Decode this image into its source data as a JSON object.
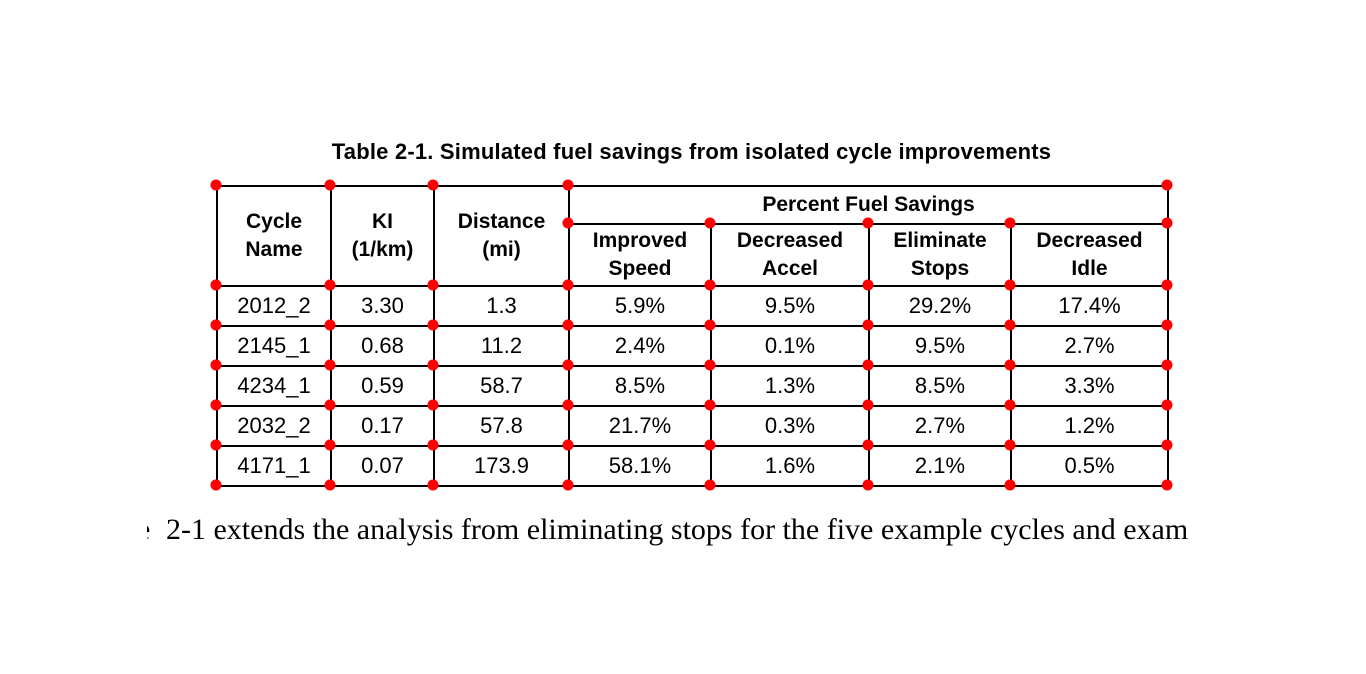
{
  "colors": {
    "background": "#ffffff",
    "border": "#000000",
    "text": "#000000",
    "marker": "#ff0000"
  },
  "caption": "Table 2-1. Simulated fuel savings from isolated cycle improvements",
  "table": {
    "columns": {
      "cycle_name": "Cycle\nName",
      "ki": "KI\n(1/km)",
      "distance": "Distance\n(mi)",
      "group_header": "Percent Fuel Savings",
      "improved_speed": "Improved\nSpeed",
      "decreased_accel": "Decreased\nAccel",
      "eliminate_stops": "Eliminate\nStops",
      "decreased_idle": "Decreased\nIdle"
    },
    "rows": [
      [
        "2012_2",
        "3.30",
        "1.3",
        "5.9%",
        "9.5%",
        "29.2%",
        "17.4%"
      ],
      [
        "2145_1",
        "0.68",
        "11.2",
        "2.4%",
        "0.1%",
        "9.5%",
        "2.7%"
      ],
      [
        "4234_1",
        "0.59",
        "58.7",
        "8.5%",
        "1.3%",
        "8.5%",
        "3.3%"
      ],
      [
        "2032_2",
        "0.17",
        "57.8",
        "21.7%",
        "0.3%",
        "2.7%",
        "1.2%"
      ],
      [
        "4171_1",
        "0.07",
        "173.9",
        "58.1%",
        "1.6%",
        "2.1%",
        "0.5%"
      ]
    ]
  },
  "body_text": {
    "fragment": "e",
    "line": "2-1 extends the analysis from eliminating stops for the five example cycles and exam"
  }
}
